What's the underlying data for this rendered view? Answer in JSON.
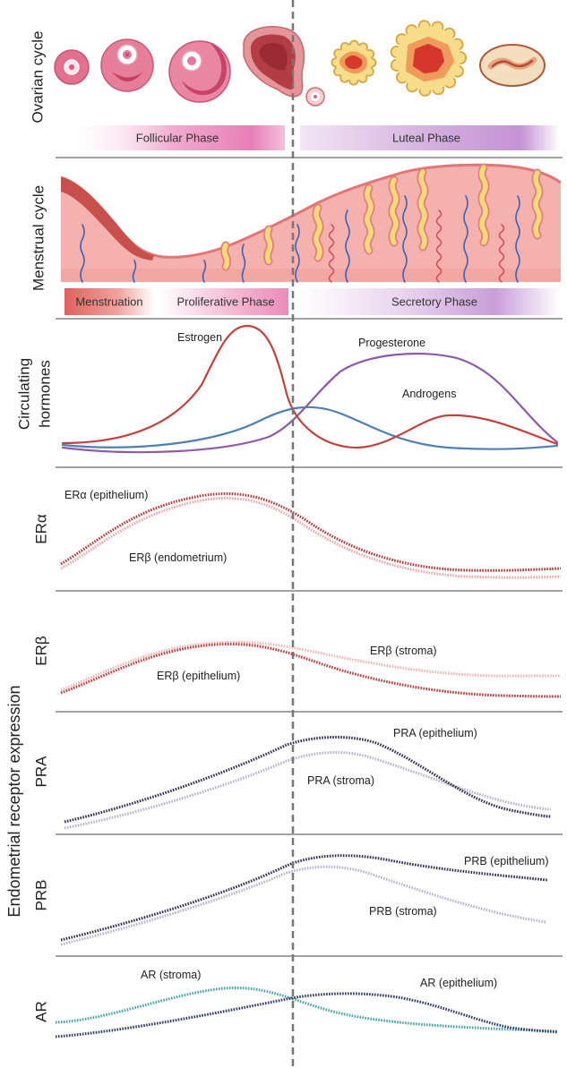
{
  "sections": {
    "ovarian": "Ovarian cycle",
    "menstrual": "Menstrual cycle",
    "hormones_line1": "Circulating",
    "hormones_line2": "hormones",
    "era": "ERα",
    "erb": "ERβ",
    "pra": "PRA",
    "prb": "PRB",
    "ar": "AR",
    "receptor_group": "Endometrial receptor expression"
  },
  "phases": {
    "follicular": "Follicular Phase",
    "luteal": "Luteal Phase",
    "menstruation": "Menstruation",
    "proliferative": "Proliferative Phase",
    "secretory": "Secretory Phase"
  },
  "hormones": {
    "estrogen": "Estrogen",
    "progesterone": "Progesterone",
    "androgens": "Androgens"
  },
  "receptors": {
    "era_epithelium": "ERα (epithelium)",
    "erb_endometrium": "ERβ (endometrium)",
    "erb_stroma": "ERβ (stroma)",
    "erb_epithelium": "ERβ (epithelium)",
    "pra_epithelium": "PRA (epithelium)",
    "pra_stroma": "PRA (stroma)",
    "prb_epithelium": "PRB (epithelium)",
    "prb_stroma": "PRB (stroma)",
    "ar_stroma": "AR (stroma)",
    "ar_epithelium": "AR (epithelium)"
  },
  "colors": {
    "estrogen": "#c2413c",
    "progesterone": "#8e5aa8",
    "androgens": "#4f7fb3",
    "era_epithelium": "#b3373c",
    "erb_endometrium": "#eba8a8",
    "erb_stroma": "#f1b7b5",
    "erb_epithelium": "#b83a3e",
    "pra_epithelium": "#2f3050",
    "pra_stroma": "#b8b3d0",
    "prb_epithelium": "#2f3050",
    "prb_stroma": "#b8b3d0",
    "ar_stroma": "#4aa3a6",
    "ar_epithelium": "#2f3a6a",
    "cycle_marker": "#777777"
  }
}
